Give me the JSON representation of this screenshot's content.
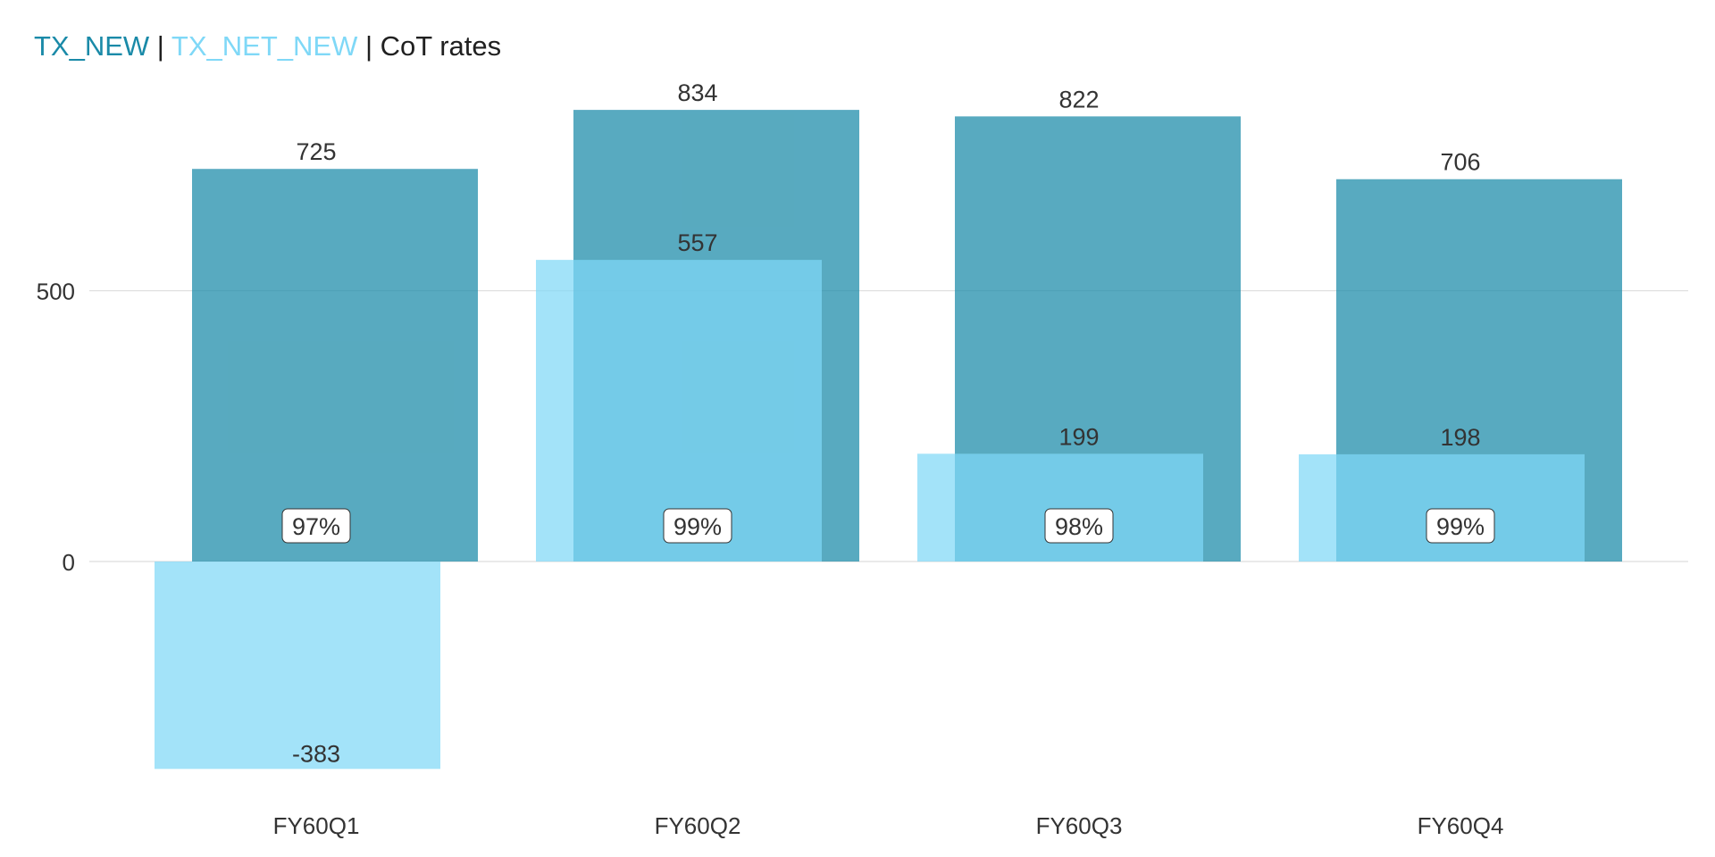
{
  "title": {
    "part1": "TX_NEW",
    "sep1": " | ",
    "part2": "TX_NET_NEW",
    "sep2": " | ",
    "part3": "CoT rates"
  },
  "colors": {
    "tx_new": "#1a8aa8",
    "tx_net_new": "#7fd8f7",
    "text": "#333333",
    "title_dark": "#202020",
    "grid": "#dddddd",
    "label_border": "#333333",
    "label_bg": "#ffffff"
  },
  "chart_data": {
    "type": "bar",
    "categories": [
      "FY60Q1",
      "FY60Q2",
      "FY60Q3",
      "FY60Q4"
    ],
    "series": [
      {
        "name": "TX_NEW",
        "values": [
          725,
          834,
          822,
          706
        ]
      },
      {
        "name": "TX_NET_NEW",
        "values": [
          -383,
          557,
          199,
          198
        ]
      }
    ],
    "cot_rates": [
      "97%",
      "99%",
      "98%",
      "99%"
    ],
    "y_ticks": [
      0,
      500
    ],
    "ylim": [
      -383,
      834
    ],
    "grid": true,
    "title": "TX_NEW | TX_NET_NEW | CoT rates"
  }
}
